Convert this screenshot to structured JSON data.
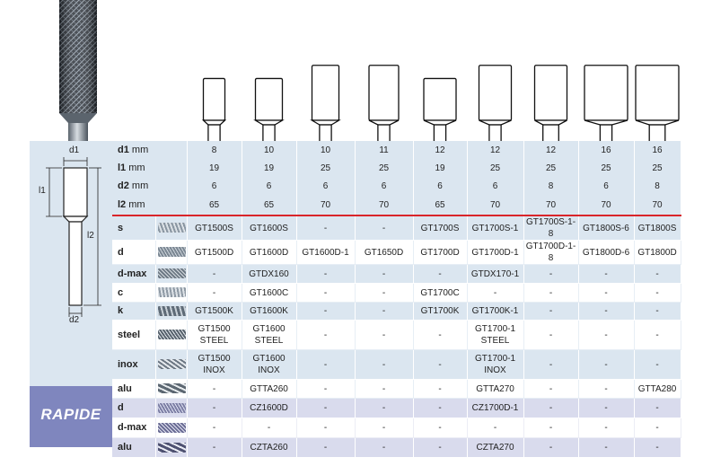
{
  "sidebar": {
    "rapide_label": "RAPIDE",
    "dim_labels": {
      "d1": "d1",
      "l1": "l1",
      "l2": "l2",
      "d2": "d2"
    }
  },
  "columns": 9,
  "dimension_rows": [
    {
      "label": "d1",
      "unit": "mm",
      "values": [
        "8",
        "10",
        "10",
        "11",
        "12",
        "12",
        "12",
        "16",
        "16"
      ]
    },
    {
      "label": "l1",
      "unit": "mm",
      "values": [
        "19",
        "19",
        "25",
        "25",
        "19",
        "25",
        "25",
        "25",
        "25"
      ]
    },
    {
      "label": "d2",
      "unit": "mm",
      "values": [
        "6",
        "6",
        "6",
        "6",
        "6",
        "6",
        "8",
        "6",
        "8"
      ]
    },
    {
      "label": "l2",
      "unit": "mm",
      "values": [
        "65",
        "65",
        "70",
        "70",
        "65",
        "70",
        "70",
        "70",
        "70"
      ]
    }
  ],
  "cut_rows": [
    {
      "label": "s",
      "swatch": "single-cut",
      "cells": [
        [
          "GT1500S"
        ],
        [
          "GT1600S"
        ],
        [
          "-"
        ],
        [
          "-"
        ],
        [
          "GT1700S"
        ],
        [
          "GT1700S-1"
        ],
        [
          "GT1700S-1-8"
        ],
        [
          "GT1800S-6"
        ],
        [
          "GT1800S"
        ]
      ]
    },
    {
      "label": "d",
      "swatch": "double-cut",
      "cells": [
        [
          "GT1500D"
        ],
        [
          "GT1600D"
        ],
        [
          "GT1600D-1"
        ],
        [
          "GT1650D"
        ],
        [
          "GT1700D"
        ],
        [
          "GT1700D-1"
        ],
        [
          "GT1700D-1-8"
        ],
        [
          "GT1800D-6"
        ],
        [
          "GT1800D"
        ]
      ]
    },
    {
      "label": "d-max",
      "swatch": "double-cut-max",
      "cells": [
        [
          "-"
        ],
        [
          "GTDX160"
        ],
        [
          "-"
        ],
        [
          "-"
        ],
        [
          "-"
        ],
        [
          "GTDX170-1"
        ],
        [
          "-"
        ],
        [
          "-"
        ],
        [
          "-"
        ]
      ]
    },
    {
      "label": "c",
      "swatch": "chip-breaker",
      "cells": [
        [
          "-"
        ],
        [
          "GT1600C"
        ],
        [
          "-"
        ],
        [
          "-"
        ],
        [
          "GT1700C"
        ],
        [
          "-"
        ],
        [
          "-"
        ],
        [
          "-"
        ],
        [
          "-"
        ]
      ]
    },
    {
      "label": "k",
      "swatch": "coarse-cut",
      "cells": [
        [
          "GT1500K"
        ],
        [
          "GT1600K"
        ],
        [
          "-"
        ],
        [
          "-"
        ],
        [
          "GT1700K"
        ],
        [
          "GT1700K-1"
        ],
        [
          "-"
        ],
        [
          "-"
        ],
        [
          "-"
        ]
      ]
    },
    {
      "label": "steel",
      "swatch": "steel-cut",
      "cells": [
        [
          "GT1500",
          "STEEL"
        ],
        [
          "GT1600",
          "STEEL"
        ],
        [
          "-"
        ],
        [
          "-"
        ],
        [
          "-"
        ],
        [
          "GT1700-1",
          "STEEL"
        ],
        [
          "-"
        ],
        [
          "-"
        ],
        [
          "-"
        ]
      ]
    },
    {
      "label": "inox",
      "swatch": "inox-cut",
      "cells": [
        [
          "GT1500",
          "INOX"
        ],
        [
          "GT1600",
          "INOX"
        ],
        [
          "-"
        ],
        [
          "-"
        ],
        [
          "-"
        ],
        [
          "GT1700-1",
          "INOX"
        ],
        [
          "-"
        ],
        [
          "-"
        ],
        [
          "-"
        ]
      ]
    },
    {
      "label": "alu",
      "swatch": "alu-cut",
      "cells": [
        [
          "-"
        ],
        [
          "GTTA260"
        ],
        [
          "-"
        ],
        [
          "-"
        ],
        [
          "-"
        ],
        [
          "GTTA270"
        ],
        [
          "-"
        ],
        [
          "-"
        ],
        [
          "GTTA280"
        ]
      ]
    }
  ],
  "rapide_rows": [
    {
      "label": "d",
      "swatch": "rapide-double-cut",
      "cells": [
        [
          "-"
        ],
        [
          "CZ1600D"
        ],
        [
          "-"
        ],
        [
          "-"
        ],
        [
          "-"
        ],
        [
          "CZ1700D-1"
        ],
        [
          "-"
        ],
        [
          "-"
        ],
        [
          "-"
        ]
      ]
    },
    {
      "label": "d-max",
      "swatch": "rapide-double-cut-max",
      "cells": [
        [
          "-"
        ],
        [
          "-"
        ],
        [
          "-"
        ],
        [
          "-"
        ],
        [
          "-"
        ],
        [
          "-"
        ],
        [
          "-"
        ],
        [
          "-"
        ],
        [
          "-"
        ]
      ]
    },
    {
      "label": "alu",
      "swatch": "rapide-alu-cut",
      "cells": [
        [
          "-"
        ],
        [
          "CZTA260"
        ],
        [
          "-"
        ],
        [
          "-"
        ],
        [
          "-"
        ],
        [
          "CZTA270"
        ],
        [
          "-"
        ],
        [
          "-"
        ],
        [
          "-"
        ]
      ]
    }
  ]
}
